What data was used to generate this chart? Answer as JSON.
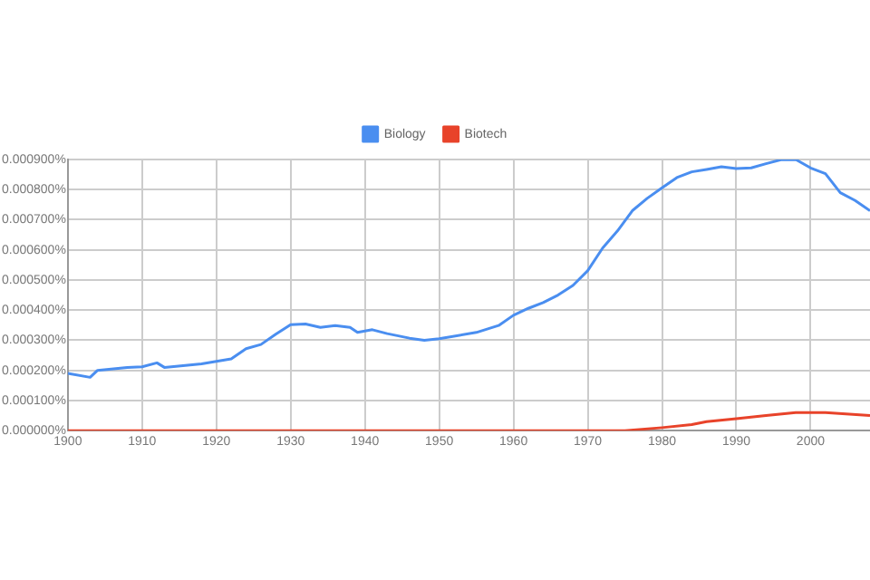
{
  "chart_data": {
    "type": "line",
    "x": [
      1900,
      1903,
      1904,
      1908,
      1910,
      1912,
      1913,
      1918,
      1920,
      1922,
      1924,
      1926,
      1928,
      1930,
      1932,
      1934,
      1936,
      1938,
      1939,
      1941,
      1943,
      1946,
      1948,
      1950,
      1955,
      1958,
      1960,
      1962,
      1964,
      1966,
      1968,
      1970,
      1972,
      1974,
      1976,
      1978,
      1980,
      1982,
      1984,
      1986,
      1988,
      1990,
      1992,
      1994,
      1996,
      1998,
      2000,
      2002,
      2004,
      2006,
      2008
    ],
    "series": [
      {
        "name": "Biology",
        "color": "#4a8ef0",
        "values": [
          0.00019,
          0.000177,
          0.0002,
          0.00021,
          0.000212,
          0.000225,
          0.00021,
          0.000222,
          0.00023,
          0.000238,
          0.000272,
          0.000286,
          0.00032,
          0.000352,
          0.000354,
          0.000343,
          0.000349,
          0.000343,
          0.000326,
          0.000335,
          0.000322,
          0.000307,
          0.0003,
          0.000305,
          0.000326,
          0.000349,
          0.000383,
          0.000406,
          0.000425,
          0.00045,
          0.000482,
          0.000531,
          0.000606,
          0.000663,
          0.00073,
          0.000771,
          0.000806,
          0.00084,
          0.000859,
          0.000867,
          0.000876,
          0.00087,
          0.000872,
          0.000886,
          0.000899,
          0.0009,
          0.000872,
          0.000853,
          0.00079,
          0.000764,
          0.00073
        ]
      },
      {
        "name": "Biotech",
        "color": "#e8432a",
        "x": [
          1900,
          1975,
          1980,
          1984,
          1986,
          1990,
          1994,
          1998,
          2000,
          2002,
          2008
        ],
        "values": [
          0,
          0,
          1e-05,
          2e-05,
          3e-05,
          4e-05,
          5e-05,
          6e-05,
          6e-05,
          6e-05,
          5e-05
        ]
      }
    ],
    "xlim": [
      1900,
      2008
    ],
    "xticks": [
      1900,
      1910,
      1920,
      1930,
      1940,
      1950,
      1960,
      1970,
      1980,
      1990,
      2000
    ],
    "ylim": [
      0,
      0.0009
    ],
    "yticks": [
      {
        "value": 0,
        "label": "0.000000%"
      },
      {
        "value": 0.0001,
        "label": "0.000100%"
      },
      {
        "value": 0.0002,
        "label": "0.000200%"
      },
      {
        "value": 0.0003,
        "label": "0.000300%"
      },
      {
        "value": 0.0004,
        "label": "0.000400%"
      },
      {
        "value": 0.0005,
        "label": "0.000500%"
      },
      {
        "value": 0.0006,
        "label": "0.000600%"
      },
      {
        "value": 0.0007,
        "label": "0.000700%"
      },
      {
        "value": 0.0008,
        "label": "0.000800%"
      },
      {
        "value": 0.0009,
        "label": "0.000900%"
      }
    ],
    "grid": true,
    "legend": "top",
    "marker": "none",
    "line_style": "solid"
  }
}
